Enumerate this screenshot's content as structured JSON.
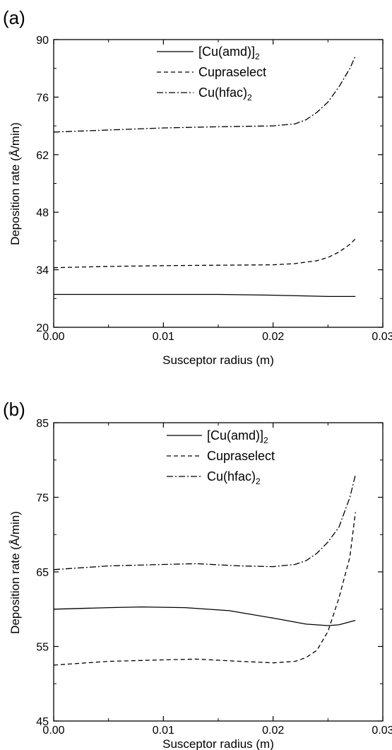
{
  "chart_data": [
    {
      "panel_label": "(a)",
      "type": "line",
      "xlabel": "Susceptor radius (m)",
      "ylabel": "Deposition rate (Å/min)",
      "xlim": [
        0.0,
        0.03
      ],
      "ylim": [
        20,
        90
      ],
      "x_ticks": [
        "0.00",
        "0.01",
        "0.02",
        "0.03"
      ],
      "y_ticks": [
        "20",
        "34",
        "48",
        "62",
        "76",
        "90"
      ],
      "legend_position": "top-right",
      "series": [
        {
          "name": "[Cu(amd)]",
          "name_sub": "2",
          "style": "solid",
          "x": [
            0.0,
            0.005,
            0.01,
            0.015,
            0.02,
            0.025,
            0.0275
          ],
          "y": [
            28.0,
            28.0,
            28.0,
            28.0,
            27.8,
            27.5,
            27.5
          ]
        },
        {
          "name": "Cupraselect",
          "name_sub": "",
          "style": "dashed",
          "x": [
            0.0,
            0.005,
            0.01,
            0.015,
            0.02,
            0.022,
            0.024,
            0.025,
            0.026,
            0.027,
            0.0275
          ],
          "y": [
            34.5,
            34.8,
            35.0,
            35.1,
            35.2,
            35.5,
            36.2,
            37.0,
            38.3,
            40.2,
            41.5
          ]
        },
        {
          "name": "Cu(hfac)",
          "name_sub": "2",
          "style": "dashdot",
          "x": [
            0.0,
            0.005,
            0.01,
            0.015,
            0.02,
            0.022,
            0.023,
            0.024,
            0.025,
            0.026,
            0.027,
            0.0275
          ],
          "y": [
            67.5,
            68.0,
            68.5,
            68.8,
            69.0,
            69.5,
            70.5,
            72.3,
            74.8,
            78.5,
            83.0,
            86.0
          ]
        }
      ]
    },
    {
      "panel_label": "(b)",
      "type": "line",
      "xlabel": "Susceptor radius (m)",
      "ylabel": "Deposition rate (Å/min)",
      "xlim": [
        0.0,
        0.03
      ],
      "ylim": [
        45,
        85
      ],
      "x_ticks": [
        "0.00",
        "0.01",
        "0.02",
        "0.03"
      ],
      "y_ticks": [
        "45",
        "55",
        "65",
        "75",
        "85"
      ],
      "legend_position": "top-right",
      "series": [
        {
          "name": "[Cu(amd)]",
          "name_sub": "2",
          "style": "solid",
          "x": [
            0.0,
            0.005,
            0.008,
            0.012,
            0.016,
            0.02,
            0.023,
            0.025,
            0.026,
            0.0275
          ],
          "y": [
            60.0,
            60.2,
            60.3,
            60.2,
            59.8,
            58.8,
            58.0,
            57.8,
            57.9,
            58.5
          ]
        },
        {
          "name": "Cupraselect",
          "name_sub": "",
          "style": "dashed",
          "x": [
            0.0,
            0.005,
            0.01,
            0.013,
            0.017,
            0.02,
            0.022,
            0.023,
            0.024,
            0.025,
            0.026,
            0.027,
            0.0275
          ],
          "y": [
            52.5,
            53.0,
            53.2,
            53.3,
            53.0,
            52.8,
            53.0,
            53.5,
            54.5,
            57.0,
            61.5,
            67.0,
            73.0
          ]
        },
        {
          "name": "Cu(hfac)",
          "name_sub": "2",
          "style": "dashdot",
          "x": [
            0.0,
            0.005,
            0.01,
            0.013,
            0.017,
            0.02,
            0.022,
            0.023,
            0.024,
            0.025,
            0.026,
            0.027,
            0.0275
          ],
          "y": [
            65.3,
            65.8,
            66.0,
            66.1,
            65.8,
            65.7,
            66.0,
            66.5,
            67.5,
            69.0,
            71.0,
            75.0,
            78.0
          ]
        }
      ]
    }
  ]
}
